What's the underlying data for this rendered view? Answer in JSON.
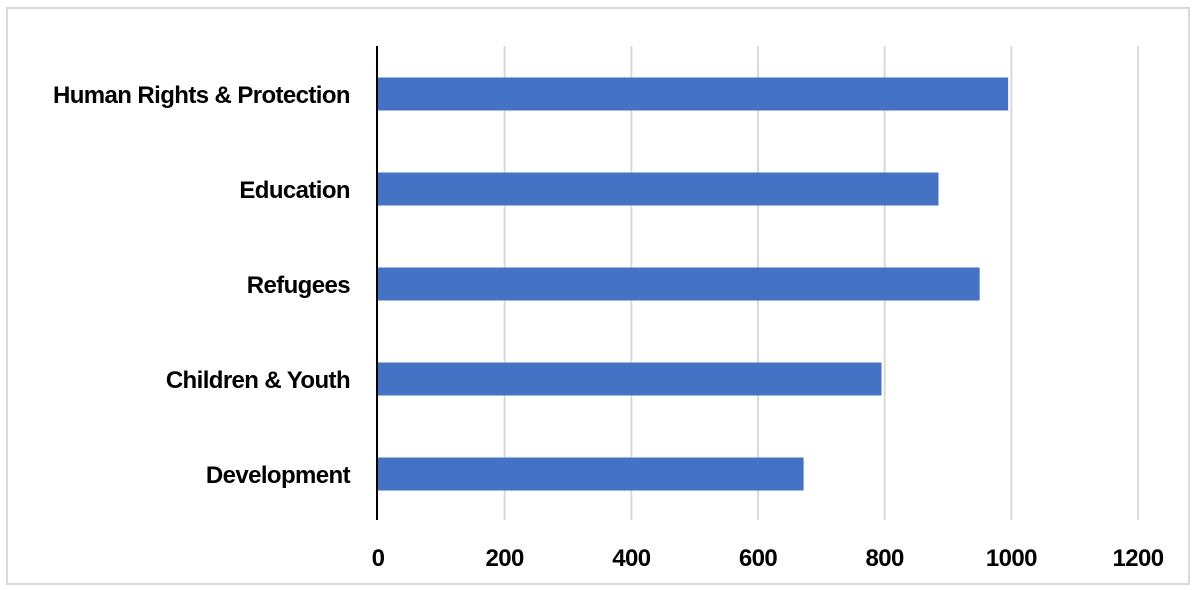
{
  "chart_data": {
    "type": "bar",
    "orientation": "horizontal",
    "categories": [
      "Human Rights & Protection",
      "Education",
      "Refugees",
      "Children & Youth",
      "Development"
    ],
    "values": [
      995,
      885,
      950,
      795,
      672
    ],
    "xlim": [
      0,
      1200
    ],
    "xticks": [
      "0",
      "200",
      "400",
      "600",
      "800",
      "1000",
      "1200"
    ],
    "grid": true,
    "legend": "none",
    "title": "",
    "xlabel": "",
    "ylabel": ""
  },
  "colors": {
    "bar": "#4472c4",
    "grid": "#d9d9d9",
    "axis": "#000000",
    "frame": "#d9d9d9"
  }
}
